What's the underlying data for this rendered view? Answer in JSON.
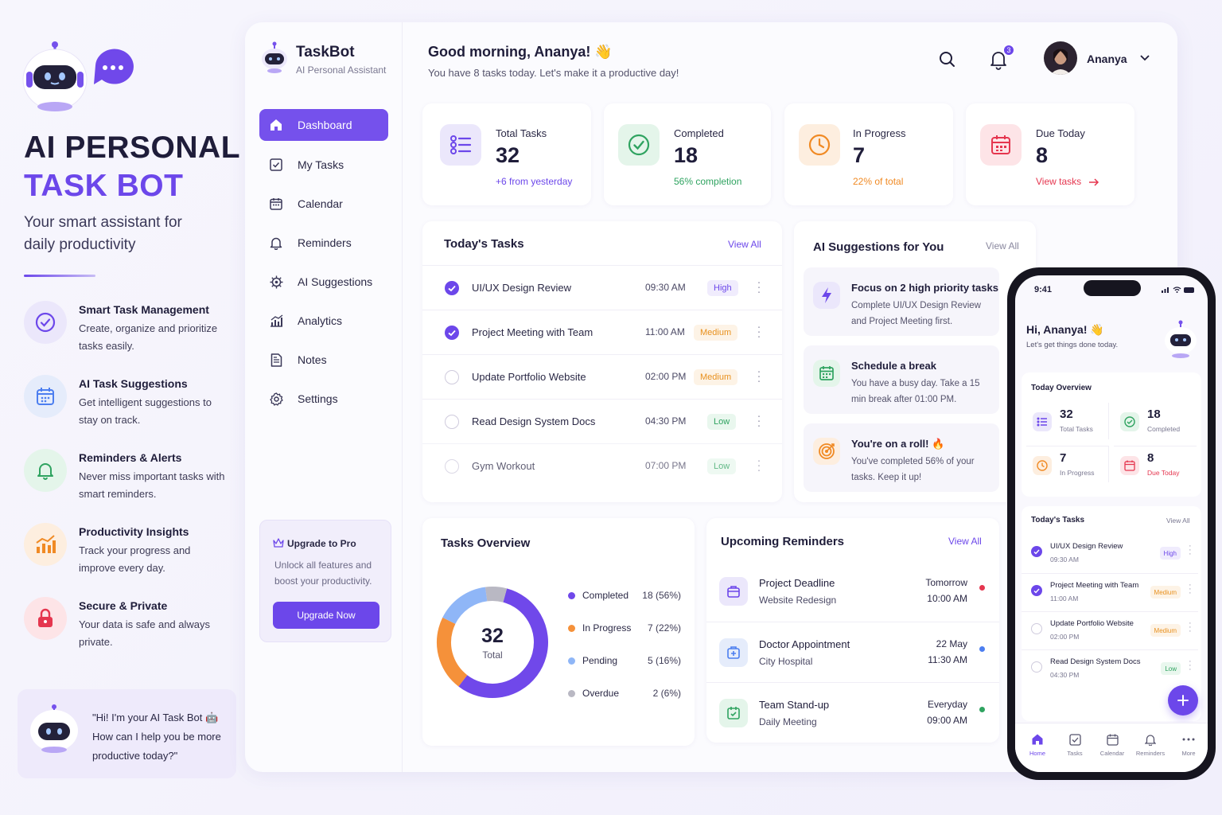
{
  "promo": {
    "title_line1": "AI PERSONAL",
    "title_line2": "TASK BOT",
    "subtitle": "Your smart assistant for daily productivity",
    "features": [
      {
        "icon": "check-circle-icon",
        "title": "Smart Task Management",
        "desc": "Create, organize and prioritize tasks easily."
      },
      {
        "icon": "calendar-icon",
        "title": "AI Task Suggestions",
        "desc": "Get intelligent suggestions to stay on track."
      },
      {
        "icon": "bell-icon",
        "title": "Reminders & Alerts",
        "desc": "Never miss important tasks with smart reminders."
      },
      {
        "icon": "chart-icon",
        "title": "Productivity Insights",
        "desc": "Track your progress and improve every day."
      },
      {
        "icon": "lock-icon",
        "title": "Secure & Private",
        "desc": "Your data is safe and always private."
      }
    ],
    "chat_text": "\"Hi! I'm your AI Task Bot 🤖 How can I help you be more productive today?\""
  },
  "sidebar": {
    "app_name": "TaskBot",
    "app_sub": "AI Personal Assistant",
    "items": [
      {
        "label": "Dashboard",
        "icon": "home-icon",
        "active": true
      },
      {
        "label": "My Tasks",
        "icon": "checkbox-icon"
      },
      {
        "label": "Calendar",
        "icon": "calendar-icon"
      },
      {
        "label": "Reminders",
        "icon": "bell-icon"
      },
      {
        "label": "AI Suggestions",
        "icon": "sparkle-gear-icon"
      },
      {
        "label": "Analytics",
        "icon": "analytics-icon"
      },
      {
        "label": "Notes",
        "icon": "notes-icon"
      },
      {
        "label": "Settings",
        "icon": "settings-icon"
      }
    ],
    "upgrade": {
      "title": "Upgrade to Pro",
      "desc": "Unlock all features and boost your productivity.",
      "button": "Upgrade Now"
    }
  },
  "header": {
    "greeting": "Good morning, Ananya! 👋",
    "subtitle": "You have 8 tasks today. Let's make it a productive day!",
    "notification_count": "3",
    "user_name": "Ananya"
  },
  "stats": [
    {
      "label": "Total Tasks",
      "value": "32",
      "sub": "+6 from yesterday",
      "color": "#6c47ea"
    },
    {
      "label": "Completed",
      "value": "18",
      "sub": "56% completion",
      "color": "#2fa360"
    },
    {
      "label": "In Progress",
      "value": "7",
      "sub": "22% of total",
      "color": "#f08a24"
    },
    {
      "label": "Due Today",
      "value": "8",
      "sub": "View tasks",
      "color": "#e5364f"
    }
  ],
  "today_tasks": {
    "title": "Today's Tasks",
    "view_all": "View All",
    "rows": [
      {
        "name": "UI/UX Design Review",
        "time": "09:30 AM",
        "priority": "High",
        "done": true
      },
      {
        "name": "Project Meeting with Team",
        "time": "11:00 AM",
        "priority": "Medium",
        "done": true
      },
      {
        "name": "Update Portfolio Website",
        "time": "02:00 PM",
        "priority": "Medium",
        "done": false
      },
      {
        "name": "Read Design System Docs",
        "time": "04:30 PM",
        "priority": "Low",
        "done": false
      },
      {
        "name": "Gym Workout",
        "time": "07:00 PM",
        "priority": "Low",
        "done": false
      }
    ]
  },
  "suggestions": {
    "title": "AI Suggestions for You",
    "view_all": "View All",
    "items": [
      {
        "icon": "lightning-icon",
        "title": "Focus on 2 high priority tasks",
        "desc": "Complete UI/UX Design Review and Project Meeting first."
      },
      {
        "icon": "calendar-icon",
        "title": "Schedule a break",
        "desc": "You have a busy day. Take a 15 min break after 01:00 PM."
      },
      {
        "icon": "target-icon",
        "title": "You're on a roll! 🔥",
        "desc": "You've completed 56% of your tasks. Keep it up!"
      }
    ]
  },
  "overview": {
    "title": "Tasks Overview",
    "total": "32",
    "total_label": "Total",
    "legend": [
      {
        "name": "Completed",
        "value": "18 (56%)",
        "count": 18,
        "color": "#7048ea"
      },
      {
        "name": "In Progress",
        "value": "7 (22%)",
        "count": 7,
        "color": "#f5913a"
      },
      {
        "name": "Pending",
        "value": "5 (16%)",
        "count": 5,
        "color": "#8fb6f7"
      },
      {
        "name": "Overdue",
        "value": "2 (6%)",
        "count": 2,
        "color": "#b9b8c3"
      }
    ]
  },
  "reminders": {
    "title": "Upcoming Reminders",
    "view_all": "View All",
    "items": [
      {
        "icon": "briefcase-icon",
        "title": "Project Deadline",
        "desc": "Website Redesign",
        "when1": "Tomorrow",
        "when2": "10:00 AM",
        "dot": "#e5364f"
      },
      {
        "icon": "medical-icon",
        "title": "Doctor Appointment",
        "desc": "City Hospital",
        "when1": "22 May",
        "when2": "11:30 AM",
        "dot": "#4c7ef0"
      },
      {
        "icon": "calendar-check-icon",
        "title": "Team Stand-up",
        "desc": "Daily Meeting",
        "when1": "Everyday",
        "when2": "09:00 AM",
        "dot": "#2fa360"
      }
    ]
  },
  "phone": {
    "time": "9:41",
    "greeting": "Hi, Ananya! 👋",
    "sub": "Let's get things done today.",
    "overview_title": "Today Overview",
    "stats": [
      {
        "value": "32",
        "label": "Total Tasks"
      },
      {
        "value": "18",
        "label": "Completed"
      },
      {
        "value": "7",
        "label": "In Progress"
      },
      {
        "value": "8",
        "label": "Due Today"
      }
    ],
    "tasks_title": "Today's Tasks",
    "view_all": "View All",
    "tasks": [
      {
        "name": "UI/UX Design Review",
        "time": "09:30 AM",
        "priority": "High"
      },
      {
        "name": "Project Meeting with Team",
        "time": "11:00 AM",
        "priority": "Medium"
      },
      {
        "name": "Update Portfolio Website",
        "time": "02:00 PM",
        "priority": "Medium"
      },
      {
        "name": "Read Design System Docs",
        "time": "04:30 PM",
        "priority": "Low"
      }
    ],
    "tabs": [
      "Home",
      "Tasks",
      "Calendar",
      "Reminders",
      "More"
    ]
  }
}
